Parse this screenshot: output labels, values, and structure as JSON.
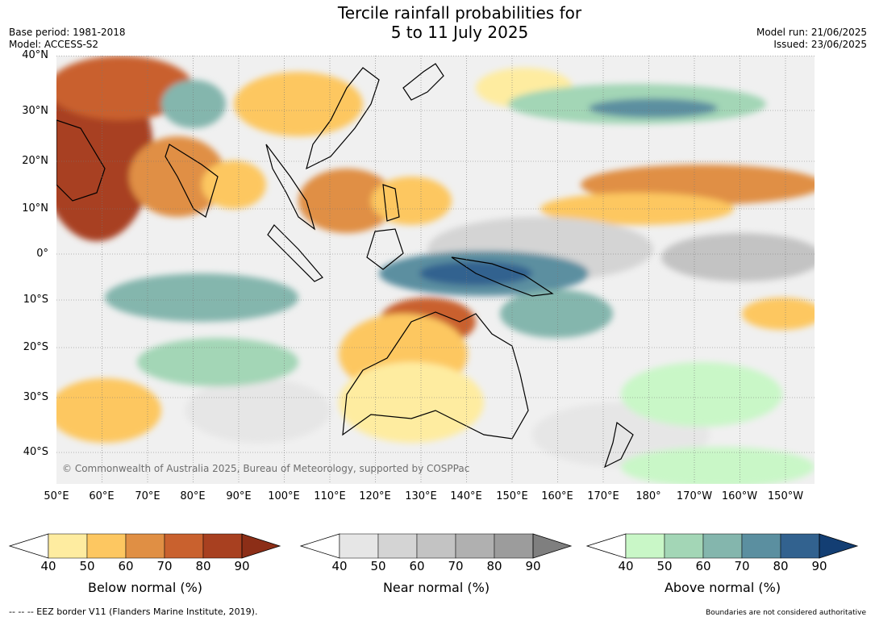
{
  "header": {
    "title_line1": "Tercile rainfall probabilities for",
    "title_line2": "5 to 11 July 2025",
    "base_period": "Base period: 1981-2018",
    "model": "Model: ACCESS-S2",
    "model_run": "Model run: 21/06/2025",
    "issued": "Issued: 23/06/2025"
  },
  "map": {
    "lat_labels": [
      "40°N",
      "30°N",
      "20°N",
      "10°N",
      "0°",
      "10°S",
      "20°S",
      "30°S",
      "40°S"
    ],
    "lon_labels": [
      "50°E",
      "60°E",
      "70°E",
      "80°E",
      "90°E",
      "100°E",
      "110°E",
      "120°E",
      "130°E",
      "140°E",
      "150°E",
      "160°E",
      "170°E",
      "180°",
      "170°W",
      "160°W",
      "150°W"
    ],
    "copyright": "© Commonwealth of Australia 2025, Bureau of Meteorology, supported by COSPPac"
  },
  "legend": {
    "ticks": [
      "40",
      "50",
      "60",
      "70",
      "80",
      "90"
    ],
    "below": {
      "label": "Below normal (%)",
      "colors": [
        "#ffffff",
        "#feeca0",
        "#fdc761",
        "#e08f44",
        "#c9612e",
        "#a84020",
        "#8c2e17"
      ]
    },
    "near": {
      "label": "Near normal (%)",
      "colors": [
        "#ffffff",
        "#e6e6e6",
        "#d4d4d4",
        "#c3c3c3",
        "#b0b0b0",
        "#9c9c9c",
        "#7f7f7f"
      ]
    },
    "above": {
      "label": "Above normal (%)",
      "colors": [
        "#ffffff",
        "#c9f7c7",
        "#a3d6b6",
        "#84b6ad",
        "#5b8fa0",
        "#32628f",
        "#133e73"
      ]
    }
  },
  "footer": {
    "eez_note": "--  --  -- EEZ border V11 (Flanders Marine Institute, 2019).",
    "boundaries_note": "Boundaries are not considered authoritative"
  }
}
